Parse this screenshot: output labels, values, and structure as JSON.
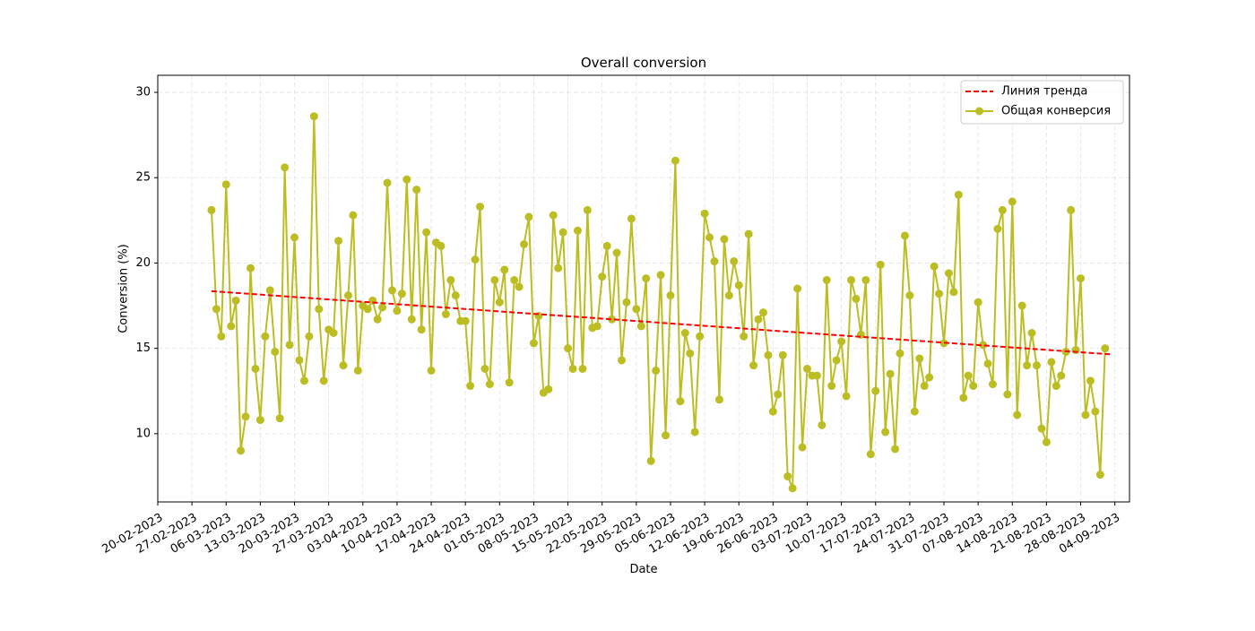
{
  "chart_data": {
    "type": "line",
    "title": "Overall conversion",
    "xlabel": "Date",
    "ylabel": "Conversion (%)",
    "ylim": [
      6.0,
      31.0
    ],
    "xlim": [
      "2023-02-20",
      "2023-09-07"
    ],
    "grid": true,
    "legend_position": "top-right",
    "x_ticks": [
      "20-02-2023",
      "27-02-2023",
      "06-03-2023",
      "13-03-2023",
      "20-03-2023",
      "27-03-2023",
      "03-04-2023",
      "10-04-2023",
      "17-04-2023",
      "24-04-2023",
      "01-05-2023",
      "08-05-2023",
      "15-05-2023",
      "22-05-2023",
      "29-05-2023",
      "05-06-2023",
      "12-06-2023",
      "19-06-2023",
      "26-06-2023",
      "03-07-2023",
      "10-07-2023",
      "17-07-2023",
      "24-07-2023",
      "31-07-2023",
      "07-08-2023",
      "14-08-2023",
      "21-08-2023",
      "28-08-2023",
      "04-09-2023"
    ],
    "y_ticks": [
      10,
      15,
      20,
      25,
      30
    ],
    "series": [
      {
        "name": "Линия тренда",
        "style": "dashed",
        "color": "#ff0000",
        "x": [
          "2023-03-03",
          "2023-09-03"
        ],
        "values": [
          18.35,
          14.65
        ]
      },
      {
        "name": "Общая конверсия",
        "style": "line-markers",
        "color": "#bcbd22",
        "start_date": "2023-03-03",
        "values": [
          23.1,
          17.3,
          15.7,
          24.6,
          16.3,
          17.8,
          9.0,
          11.0,
          19.7,
          13.8,
          10.8,
          15.7,
          18.4,
          14.8,
          10.9,
          25.6,
          15.2,
          21.5,
          14.3,
          13.1,
          15.7,
          28.6,
          17.3,
          13.1,
          16.1,
          15.9,
          21.3,
          14.0,
          18.1,
          22.8,
          13.7,
          17.5,
          17.3,
          17.8,
          16.7,
          17.4,
          24.7,
          18.4,
          17.2,
          18.2,
          24.9,
          16.7,
          24.3,
          16.1,
          21.8,
          13.7,
          21.2,
          21.0,
          17.0,
          19.0,
          18.1,
          16.6,
          16.6,
          12.8,
          20.2,
          23.3,
          13.8,
          12.9,
          19.0,
          17.7,
          19.6,
          13.0,
          19.0,
          18.6,
          21.1,
          22.7,
          15.3,
          16.9,
          12.4,
          12.6,
          22.8,
          19.7,
          21.8,
          15.0,
          13.8,
          21.9,
          13.8,
          23.1,
          16.2,
          16.3,
          19.2,
          21.0,
          16.7,
          20.6,
          14.3,
          17.7,
          22.6,
          17.3,
          16.3,
          19.1,
          8.4,
          13.7,
          19.3,
          9.9,
          18.1,
          26.0,
          11.9,
          15.9,
          14.7,
          10.1,
          15.7,
          22.9,
          21.5,
          20.1,
          12.0,
          21.4,
          18.1,
          20.1,
          18.7,
          15.7,
          21.7,
          14.0,
          16.7,
          17.1,
          14.6,
          11.3,
          12.3,
          14.6,
          7.5,
          6.8,
          18.5,
          9.2,
          13.8,
          13.4,
          13.4,
          10.5,
          19.0,
          12.8,
          14.3,
          15.4,
          12.2,
          19.0,
          17.9,
          15.8,
          19.0,
          8.8,
          12.5,
          19.9,
          10.1,
          13.5,
          9.1,
          14.7,
          21.6,
          18.1,
          11.3,
          14.4,
          12.8,
          13.3,
          19.8,
          18.2,
          15.3,
          19.4,
          18.3,
          24.0,
          12.1,
          13.4,
          12.8,
          17.7,
          15.2,
          14.1,
          12.9,
          22.0,
          23.1,
          12.3,
          23.6,
          11.1,
          17.5,
          14.0,
          15.9,
          14.0,
          10.3,
          9.5,
          14.2,
          12.8,
          13.4,
          14.8,
          23.1,
          14.9,
          19.1,
          11.1,
          13.1,
          11.3,
          7.6,
          15.0
        ]
      }
    ]
  }
}
